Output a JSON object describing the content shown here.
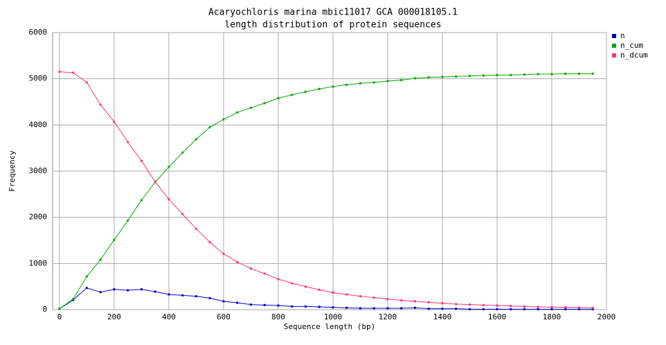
{
  "chart_data": {
    "type": "line",
    "title": "Acaryochloris marina mbic11017 GCA 000018105.1",
    "subtitle": "length distribution of protein sequences",
    "x_label": "Sequence length (bp)",
    "y_label": "Frequency",
    "x": [
      0,
      50,
      100,
      150,
      200,
      250,
      300,
      350,
      400,
      450,
      500,
      550,
      600,
      650,
      700,
      750,
      800,
      850,
      900,
      950,
      1000,
      1050,
      1100,
      1150,
      1200,
      1250,
      1300,
      1350,
      1400,
      1450,
      1500,
      1550,
      1600,
      1650,
      1700,
      1750,
      1800,
      1850,
      1900,
      1950
    ],
    "series": [
      {
        "name": "n",
        "color": "#0000cc",
        "values": [
          20,
          210,
          470,
          380,
          440,
          420,
          440,
          390,
          330,
          310,
          290,
          250,
          180,
          150,
          110,
          100,
          90,
          70,
          70,
          60,
          50,
          40,
          30,
          30,
          30,
          30,
          40,
          20,
          20,
          20,
          10,
          10,
          10,
          10,
          10,
          10,
          10,
          10,
          10,
          10
        ]
      },
      {
        "name": "n_cum",
        "color": "#00aa00",
        "values": [
          20,
          230,
          720,
          1080,
          1510,
          1930,
          2370,
          2760,
          3090,
          3400,
          3690,
          3950,
          4120,
          4270,
          4370,
          4470,
          4580,
          4650,
          4720,
          4780,
          4830,
          4870,
          4900,
          4920,
          4950,
          4970,
          5010,
          5030,
          5040,
          5050,
          5060,
          5070,
          5080,
          5080,
          5090,
          5100,
          5100,
          5110,
          5110,
          5110
        ]
      },
      {
        "name": "n_dcum",
        "color": "#ff3377",
        "values": [
          5150,
          5130,
          4920,
          4440,
          4070,
          3630,
          3220,
          2770,
          2390,
          2070,
          1750,
          1460,
          1210,
          1030,
          890,
          780,
          660,
          570,
          500,
          430,
          370,
          330,
          290,
          260,
          230,
          200,
          180,
          160,
          140,
          120,
          110,
          100,
          90,
          80,
          70,
          60,
          55,
          50,
          45,
          40
        ]
      }
    ],
    "xlim": [
      -25,
      2000
    ],
    "xticks": [
      0,
      200,
      400,
      600,
      800,
      1000,
      1200,
      1400,
      1600,
      1800,
      2000
    ],
    "ylim": [
      0,
      6000
    ],
    "yticks": [
      0,
      1000,
      2000,
      3000,
      4000,
      5000,
      6000
    ],
    "grid": true,
    "legend": "top-right"
  }
}
